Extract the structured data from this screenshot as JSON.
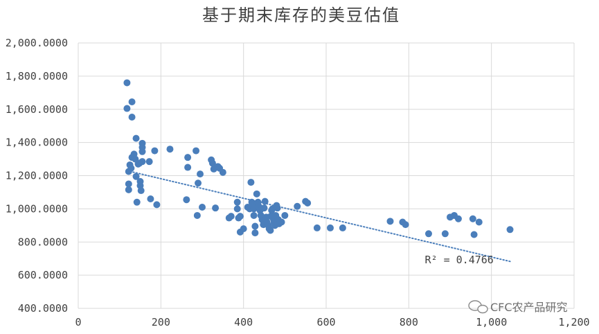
{
  "chart_data": {
    "type": "scatter",
    "title": "基于期末库存的美豆估值",
    "xlabel": "",
    "ylabel": "",
    "xlim": [
      0,
      1200
    ],
    "ylim": [
      400,
      2000
    ],
    "x_ticks": [
      0,
      200,
      400,
      600,
      800,
      1000,
      1200
    ],
    "x_tick_labels": [
      "0",
      "200",
      "400",
      "600",
      "800",
      "1,000",
      "1,200"
    ],
    "y_ticks": [
      400,
      600,
      800,
      1000,
      1200,
      1400,
      1600,
      1800,
      2000
    ],
    "y_tick_labels": [
      "400.0000",
      "600.0000",
      "800.0000",
      "1,000.0000",
      "1,200.0000",
      "1,400.0000",
      "1,600.0000",
      "1,800.0000",
      "2,000.0000"
    ],
    "grid": true,
    "marker_color": "#4a7ebb",
    "trendline": {
      "type": "linear",
      "x_range": [
        118,
        1050
      ],
      "y_start": 1230,
      "y_end": 680,
      "color": "#4a7ebb",
      "style": "dotted",
      "r_squared_label": "R² = 0.4766"
    },
    "points": [
      [
        118,
        1760
      ],
      [
        118,
        1605
      ],
      [
        130,
        1645
      ],
      [
        130,
        1553
      ],
      [
        122,
        1150
      ],
      [
        122,
        1115
      ],
      [
        122,
        1225
      ],
      [
        125,
        1265
      ],
      [
        128,
        1245
      ],
      [
        130,
        1310
      ],
      [
        135,
        1330
      ],
      [
        138,
        1300
      ],
      [
        140,
        1425
      ],
      [
        140,
        1195
      ],
      [
        142,
        1040
      ],
      [
        145,
        1270
      ],
      [
        148,
        1275
      ],
      [
        150,
        1165
      ],
      [
        150,
        1140
      ],
      [
        152,
        1110
      ],
      [
        155,
        1395
      ],
      [
        155,
        1370
      ],
      [
        155,
        1345
      ],
      [
        155,
        1285
      ],
      [
        172,
        1285
      ],
      [
        175,
        1060
      ],
      [
        185,
        1350
      ],
      [
        190,
        1025
      ],
      [
        222,
        1360
      ],
      [
        262,
        1055
      ],
      [
        265,
        1310
      ],
      [
        265,
        1250
      ],
      [
        285,
        1350
      ],
      [
        288,
        960
      ],
      [
        290,
        1155
      ],
      [
        295,
        1210
      ],
      [
        300,
        1010
      ],
      [
        322,
        1295
      ],
      [
        325,
        1275
      ],
      [
        328,
        1240
      ],
      [
        332,
        1005
      ],
      [
        338,
        1255
      ],
      [
        342,
        1245
      ],
      [
        350,
        1220
      ],
      [
        365,
        945
      ],
      [
        370,
        955
      ],
      [
        385,
        1040
      ],
      [
        385,
        1000
      ],
      [
        388,
        945
      ],
      [
        392,
        860
      ],
      [
        392,
        955
      ],
      [
        400,
        880
      ],
      [
        410,
        1010
      ],
      [
        415,
        1000
      ],
      [
        418,
        1160
      ],
      [
        420,
        1040
      ],
      [
        422,
        1020
      ],
      [
        425,
        1000
      ],
      [
        425,
        960
      ],
      [
        428,
        895
      ],
      [
        428,
        855
      ],
      [
        432,
        1090
      ],
      [
        435,
        1040
      ],
      [
        437,
        1015
      ],
      [
        440,
        990
      ],
      [
        442,
        960
      ],
      [
        445,
        935
      ],
      [
        448,
        905
      ],
      [
        450,
        1005
      ],
      [
        452,
        1045
      ],
      [
        455,
        950
      ],
      [
        457,
        920
      ],
      [
        460,
        900
      ],
      [
        462,
        880
      ],
      [
        465,
        870
      ],
      [
        466,
        955
      ],
      [
        468,
        990
      ],
      [
        470,
        1000
      ],
      [
        472,
        940
      ],
      [
        474,
        920
      ],
      [
        476,
        900
      ],
      [
        478,
        960
      ],
      [
        480,
        1020
      ],
      [
        482,
        1005
      ],
      [
        484,
        935
      ],
      [
        486,
        910
      ],
      [
        492,
        920
      ],
      [
        500,
        960
      ],
      [
        530,
        1015
      ],
      [
        550,
        1045
      ],
      [
        555,
        1035
      ],
      [
        578,
        885
      ],
      [
        610,
        885
      ],
      [
        640,
        885
      ],
      [
        755,
        925
      ],
      [
        785,
        920
      ],
      [
        792,
        905
      ],
      [
        848,
        850
      ],
      [
        888,
        850
      ],
      [
        900,
        950
      ],
      [
        910,
        960
      ],
      [
        920,
        940
      ],
      [
        955,
        940
      ],
      [
        958,
        845
      ],
      [
        970,
        920
      ],
      [
        1045,
        875
      ]
    ]
  },
  "watermark": {
    "text": "CFC农产品研究",
    "icon": "chat-bubble-icon"
  }
}
